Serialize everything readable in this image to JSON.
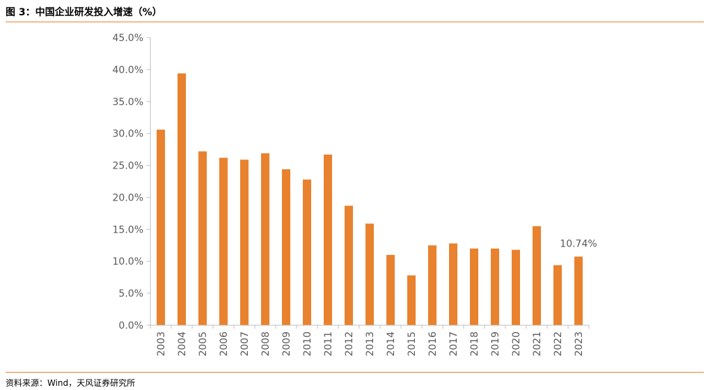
{
  "header": {
    "title": "图 3：中国企业研发投入增速（%）"
  },
  "footer": {
    "source": "资料来源：Wind，天风证券研究所"
  },
  "colors": {
    "bar": "#E8822E",
    "rule": "#E8822E",
    "axis": "#BFBFBF",
    "text": "#595959"
  },
  "chart_data": {
    "type": "bar",
    "categories": [
      "2003",
      "2004",
      "2005",
      "2006",
      "2007",
      "2008",
      "2009",
      "2010",
      "2011",
      "2012",
      "2013",
      "2014",
      "2015",
      "2016",
      "2017",
      "2018",
      "2019",
      "2020",
      "2021",
      "2022",
      "2023"
    ],
    "values": [
      30.6,
      39.4,
      27.2,
      26.2,
      25.9,
      26.9,
      24.4,
      22.8,
      26.7,
      18.7,
      15.9,
      11.0,
      7.8,
      12.5,
      12.8,
      12.0,
      12.0,
      11.8,
      15.5,
      9.4,
      10.74
    ],
    "ylim": [
      0,
      45
    ],
    "yticks": [
      "0.0%",
      "5.0%",
      "10.0%",
      "15.0%",
      "20.0%",
      "25.0%",
      "30.0%",
      "35.0%",
      "40.0%",
      "45.0%"
    ],
    "data_labels": [
      {
        "category": "2023",
        "text": "10.74%"
      }
    ],
    "grid": false,
    "legend": "none"
  }
}
